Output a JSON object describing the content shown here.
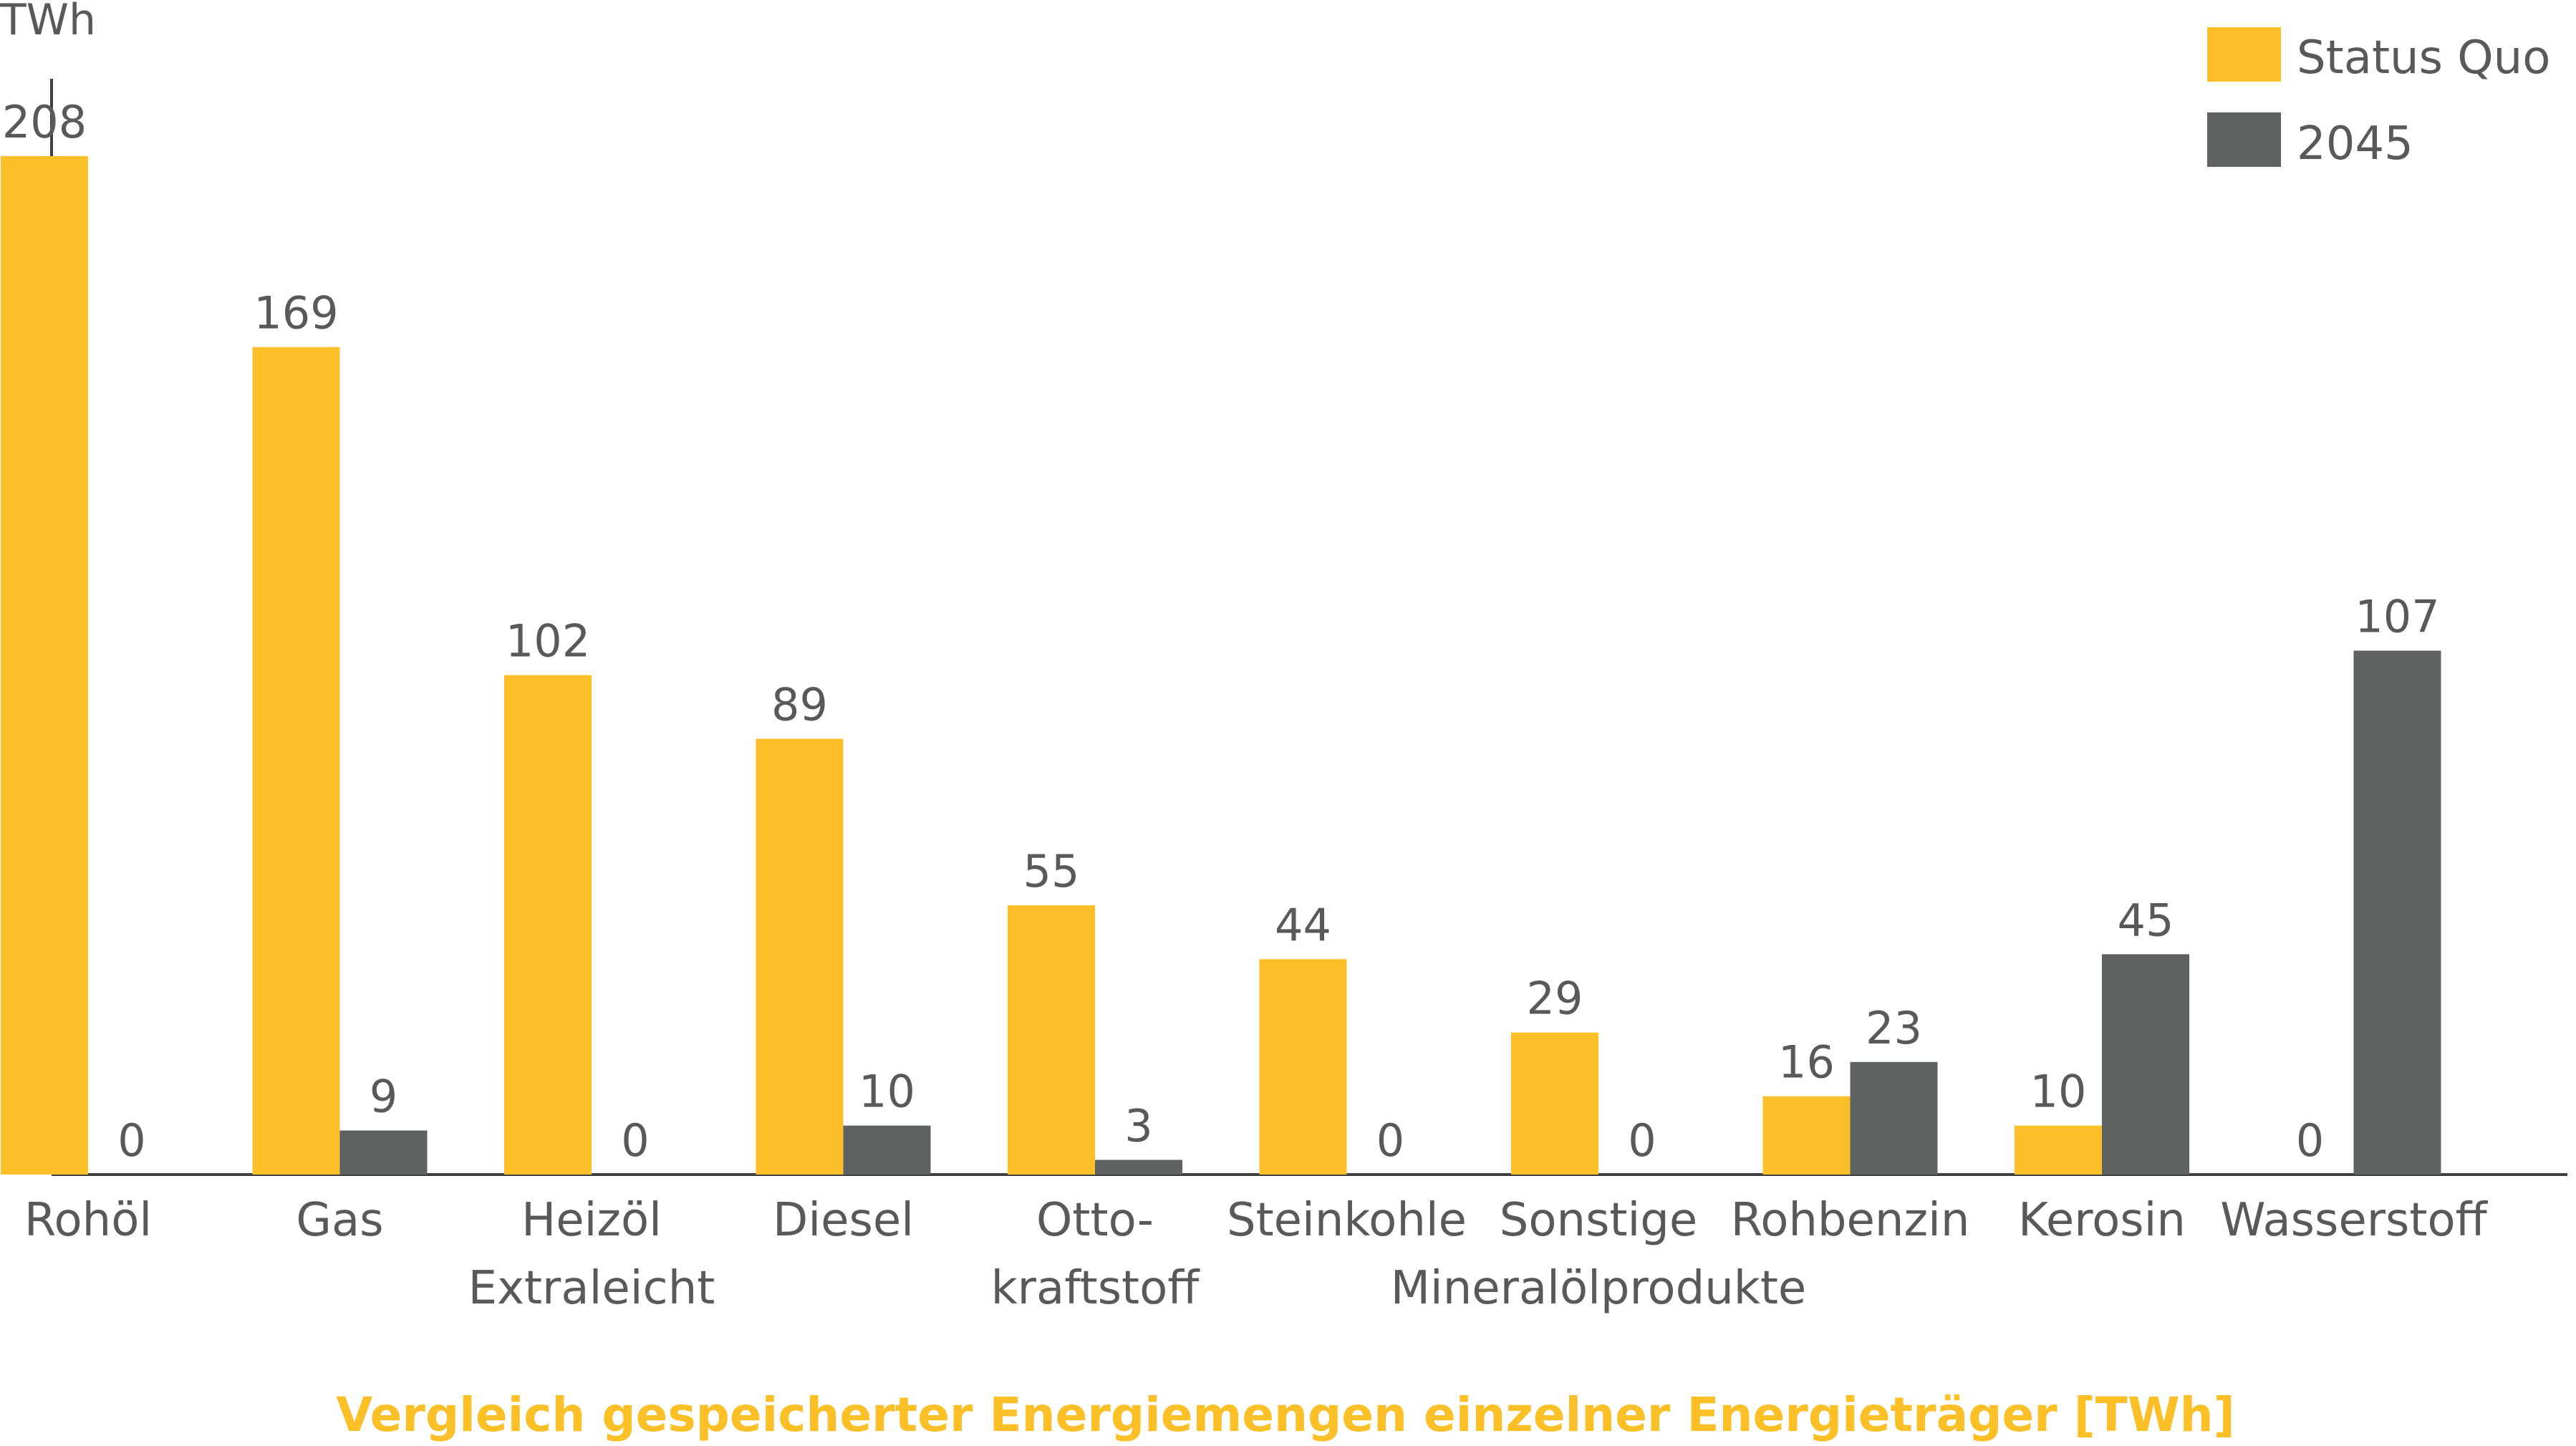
{
  "chart_data": {
    "type": "bar",
    "title": "Vergleich gespeicherter Energiemengen einzelner Energieträger [TWh]",
    "ylabel": "TWh",
    "xlabel": "",
    "ylim": [
      0,
      220
    ],
    "grid": false,
    "legend_position": "top-right",
    "categories": [
      [
        "Rohöl"
      ],
      [
        "Gas"
      ],
      [
        "Heizöl",
        "Extraleicht"
      ],
      [
        "Diesel"
      ],
      [
        "Otto-",
        "kraftstoff"
      ],
      [
        "Steinkohle"
      ],
      [
        "Sonstige",
        "Mineralölprodukte"
      ],
      [
        "Rohbenzin"
      ],
      [
        "Kerosin"
      ],
      [
        "Wasserstoff"
      ]
    ],
    "series": [
      {
        "name": "Status Quo",
        "color": "#fbbf27",
        "values": [
          208,
          169,
          102,
          89,
          55,
          44,
          29,
          16,
          10,
          0
        ],
        "labels": [
          "208",
          "169",
          "102",
          "89",
          "55",
          "44",
          "29",
          "16",
          "10",
          "0"
        ]
      },
      {
        "name": "2045",
        "color": "#5f6263",
        "values": [
          0,
          9,
          0,
          10,
          3,
          0,
          0,
          23,
          45,
          107
        ],
        "labels": [
          "0",
          "9",
          "0",
          "10",
          "3",
          "0",
          "0",
          "23",
          "45",
          "107"
        ]
      }
    ],
    "title_color": "#fbbf27",
    "text_color": "#58595b",
    "axis_color": "#3f4042"
  }
}
